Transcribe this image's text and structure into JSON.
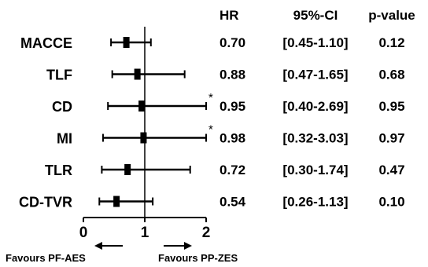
{
  "chart_data": {
    "type": "forest",
    "columns": {
      "hr": "HR",
      "ci": "95%-CI",
      "p": "p-value"
    },
    "x_ticks": [
      "0",
      "1",
      "2"
    ],
    "xlim": [
      0,
      2
    ],
    "reference_line": 1,
    "annotations": {
      "left": "Favours PF-AES",
      "right": "Favours PP-ZES",
      "truncated_marker": "*"
    },
    "rows": [
      {
        "label": "MACCE",
        "hr": 0.7,
        "lo": 0.45,
        "hi": 1.1,
        "hr_text": "0.70",
        "ci_text": "[0.45-1.10]",
        "p_text": "0.12",
        "truncated": false
      },
      {
        "label": "TLF",
        "hr": 0.88,
        "lo": 0.47,
        "hi": 1.65,
        "hr_text": "0.88",
        "ci_text": "[0.47-1.65]",
        "p_text": "0.68",
        "truncated": false
      },
      {
        "label": "CD",
        "hr": 0.95,
        "lo": 0.4,
        "hi": 2.69,
        "hr_text": "0.95",
        "ci_text": "[0.40-2.69]",
        "p_text": "0.95",
        "truncated": true
      },
      {
        "label": "MI",
        "hr": 0.98,
        "lo": 0.32,
        "hi": 3.03,
        "hr_text": "0.98",
        "ci_text": "[0.32-3.03]",
        "p_text": "0.97",
        "truncated": true
      },
      {
        "label": "TLR",
        "hr": 0.72,
        "lo": 0.3,
        "hi": 1.74,
        "hr_text": "0.72",
        "ci_text": "[0.30-1.74]",
        "p_text": "0.47",
        "truncated": false
      },
      {
        "label": "CD-TVR",
        "hr": 0.54,
        "lo": 0.26,
        "hi": 1.13,
        "hr_text": "0.54",
        "ci_text": "[0.26-1.13]",
        "p_text": "0.10",
        "truncated": false
      }
    ]
  }
}
